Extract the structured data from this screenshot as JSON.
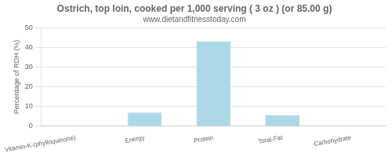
{
  "chart_data": {
    "type": "bar",
    "title": "Ostrich, top loin, cooked per 1,000 serving ( 3 oz ) (or 85.00 g)",
    "subtitle": "www.dietandfitnesstoday.com",
    "categories": [
      "Vitamin-K-(phylloquinone)",
      "Energy",
      "Protein",
      "Total-Fat",
      "Carbohydrate"
    ],
    "values": [
      0,
      7,
      43,
      5.5,
      0
    ],
    "color": "#add8e6",
    "ylabel": "Percentage of RDH (%)",
    "ylim": [
      0,
      50
    ],
    "yticks": [
      0,
      10,
      20,
      30,
      40,
      50
    ],
    "grid": true
  }
}
